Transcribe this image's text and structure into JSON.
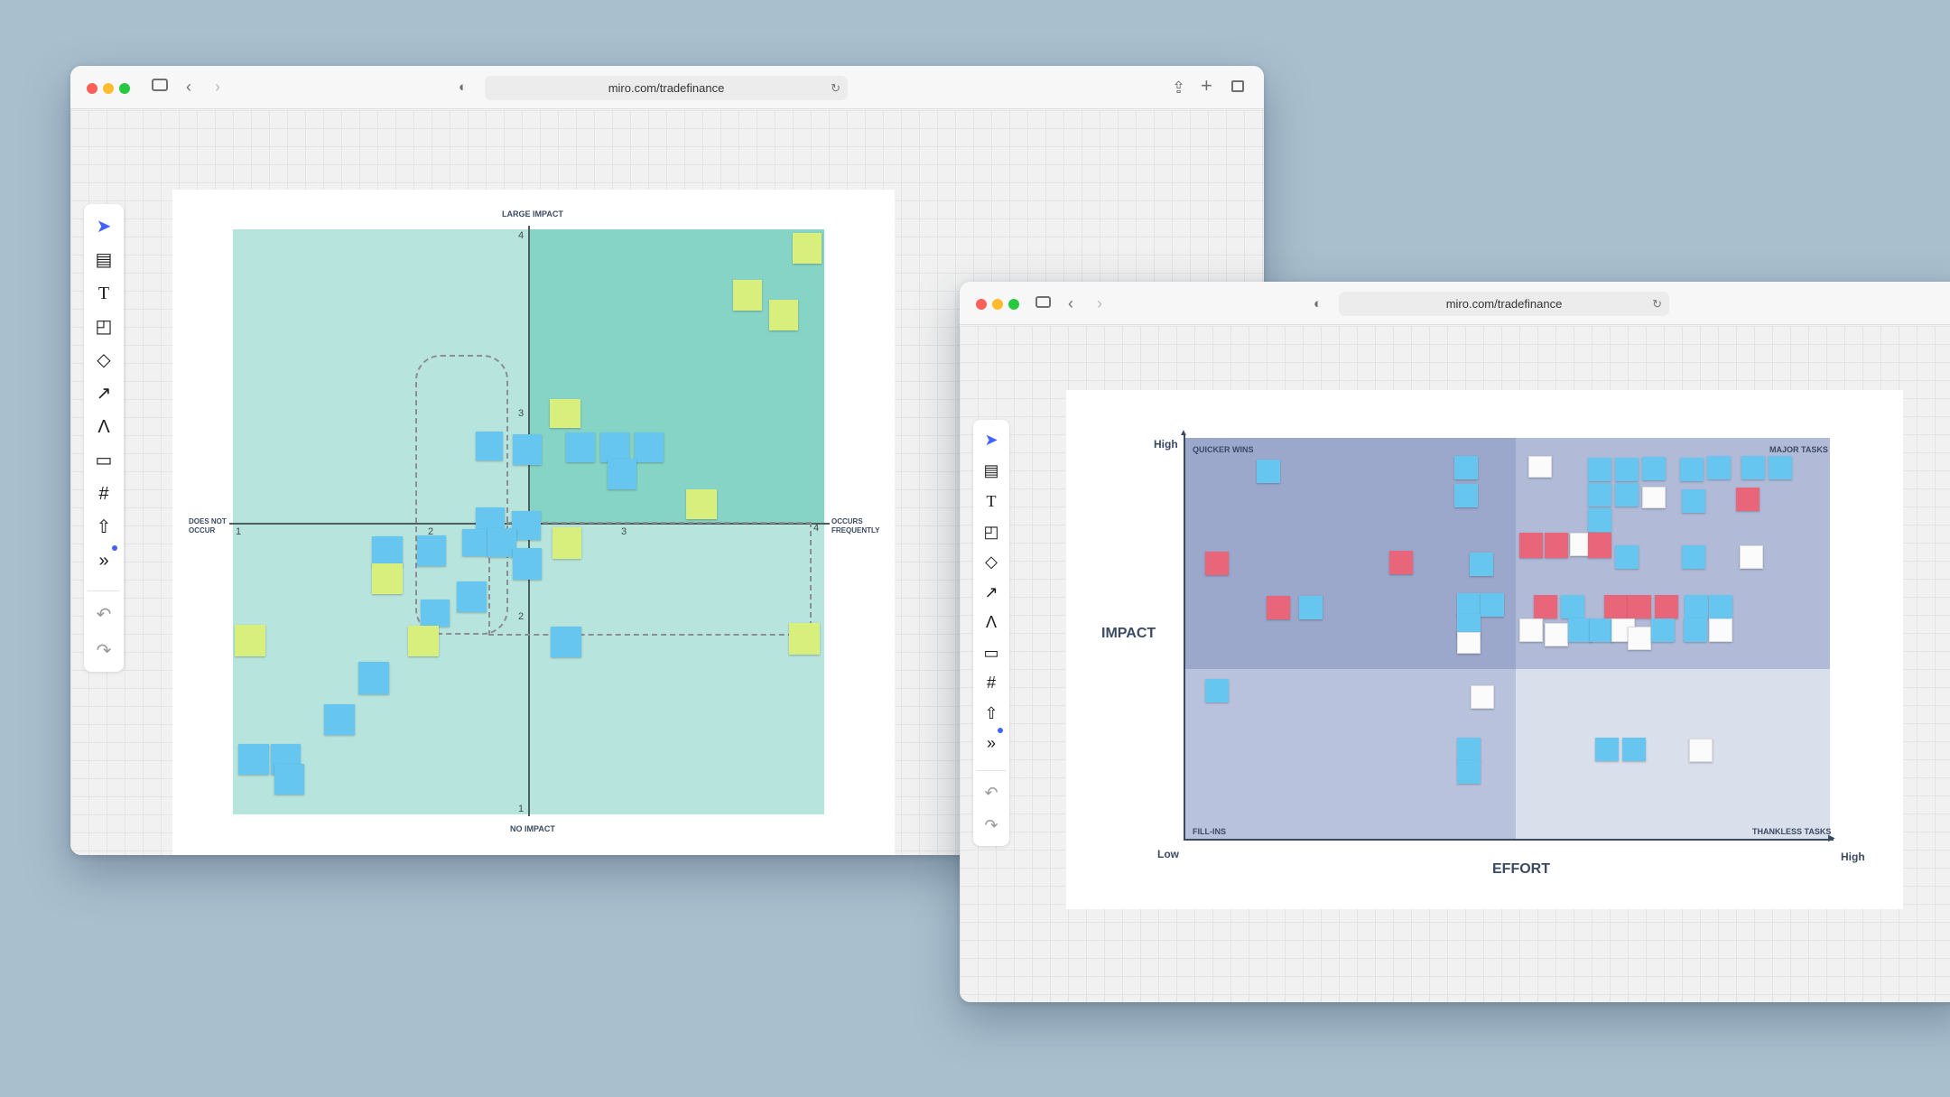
{
  "windows": [
    {
      "url": "miro.com/tradefinance"
    },
    {
      "url": "miro.com/tradefinance"
    }
  ],
  "toolbar": {
    "tools": [
      "select-icon",
      "templates-icon",
      "text-icon",
      "sticky-note-icon",
      "shapes-icon",
      "connector-icon",
      "pen-icon",
      "comment-icon",
      "frame-icon",
      "upload-icon",
      "more-icon"
    ],
    "undo": "undo-icon",
    "redo": "redo-icon"
  },
  "board1": {
    "axis_top": "LARGE IMPACT",
    "axis_bottom": "NO IMPACT",
    "axis_left": "DOES NOT OCCUR",
    "axis_right": "OCCURS FREQUENTLY",
    "ticks_x": [
      "1",
      "2",
      "3",
      "4"
    ],
    "ticks_y": [
      "4",
      "3",
      "2",
      "1"
    ],
    "colors": {
      "quad_light": "#b7e4dc",
      "quad_dark": "#86d4c5"
    }
  },
  "board2": {
    "y_label": "IMPACT",
    "x_label": "EFFORT",
    "y_high": "High",
    "x_high": "High",
    "low": "Low",
    "q_tl": "QUICKER WINS",
    "q_tr": "MAJOR TASKS",
    "q_bl": "FILL-INS",
    "q_br": "THANKLESS TASKS",
    "colors": {
      "tl": "#9ba7cb",
      "tr": "#b1bbd8",
      "bl": "#b9c2dc",
      "br": "#dadfec"
    }
  }
}
